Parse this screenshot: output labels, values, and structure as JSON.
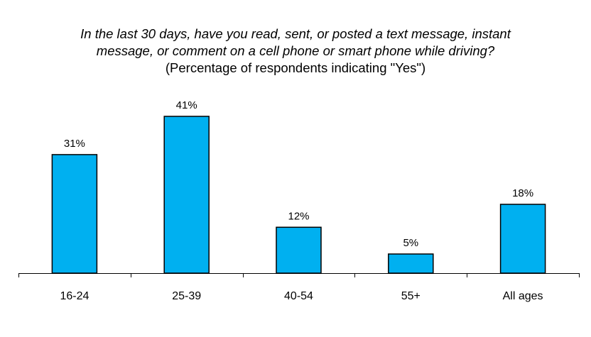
{
  "chart_data": {
    "type": "bar",
    "title_lines": [
      "In the last 30 days, have you read, sent, or posted a text message, instant",
      "message, or comment on a cell phone or smart phone while driving?"
    ],
    "subtitle": "(Percentage of respondents indicating \"Yes\")",
    "categories": [
      "16-24",
      "25-39",
      "40-54",
      "55+",
      "All ages"
    ],
    "values": [
      31,
      41,
      12,
      5,
      18
    ],
    "data_labels": [
      "31%",
      "41%",
      "12%",
      "5%",
      "18%"
    ],
    "unit": "%",
    "ylim": [
      0,
      41
    ],
    "bar_color": "#00B0F0",
    "bar_outline_color": "#000000",
    "grid": false,
    "legend": "none",
    "xlabel": "",
    "ylabel": ""
  }
}
